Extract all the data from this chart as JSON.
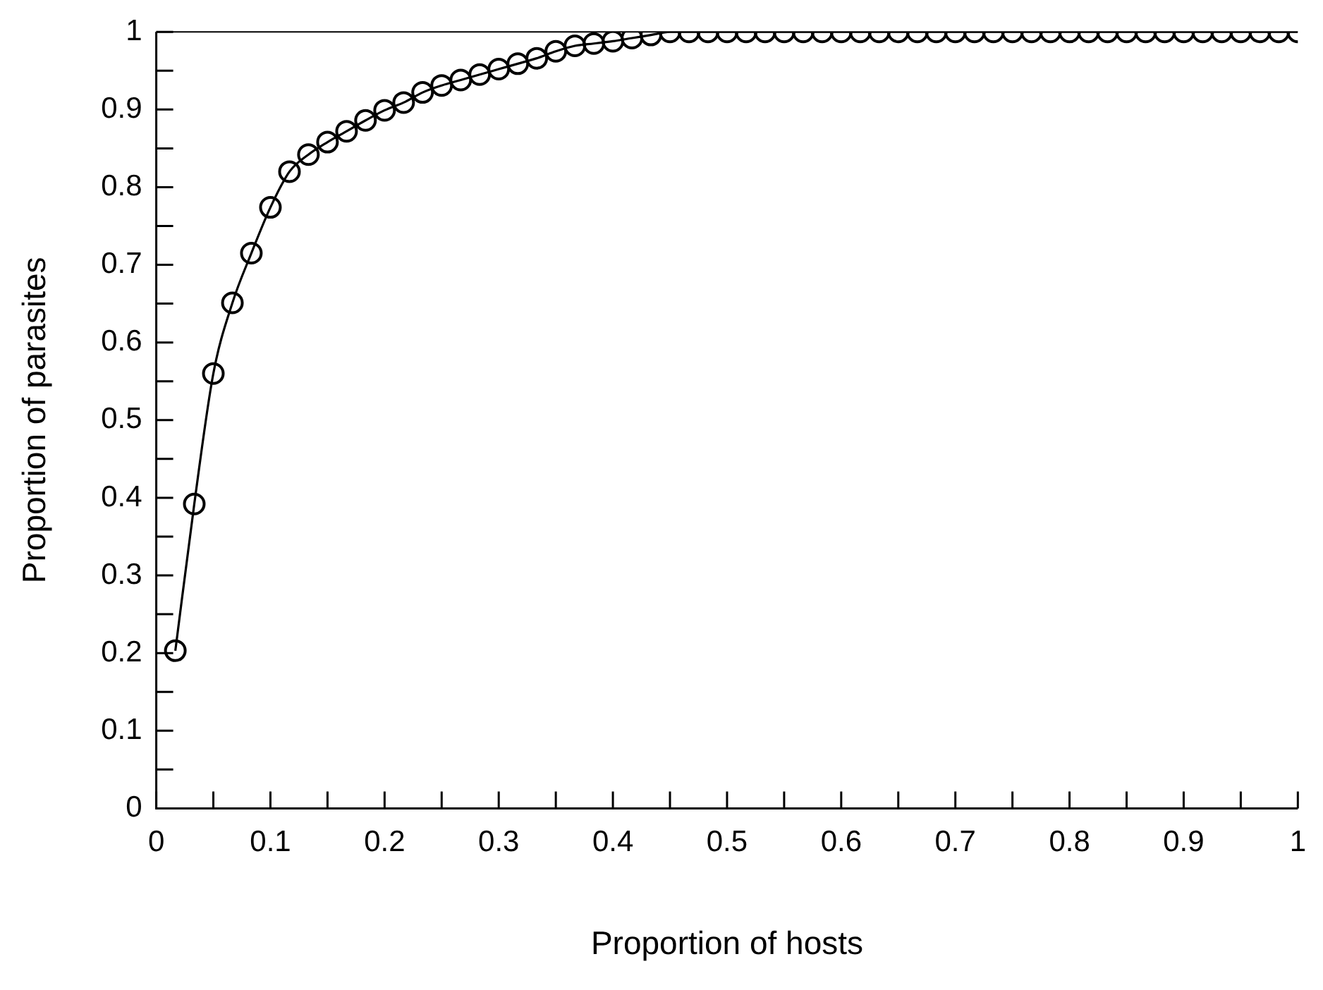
{
  "chart_data": {
    "type": "line",
    "xlabel": "Proportion of hosts",
    "ylabel": "Proportion of parasites",
    "marker": "circle",
    "line_style": "solid",
    "x": [
      0.0167,
      0.0333,
      0.05,
      0.0667,
      0.0833,
      0.1,
      0.1167,
      0.1333,
      0.15,
      0.1667,
      0.1833,
      0.2,
      0.2167,
      0.2333,
      0.25,
      0.2667,
      0.2833,
      0.3,
      0.3167,
      0.3333,
      0.35,
      0.3667,
      0.3833,
      0.4,
      0.4167,
      0.4333,
      0.45,
      0.4667,
      0.4833,
      0.5,
      0.5167,
      0.5333,
      0.55,
      0.5667,
      0.5833,
      0.6,
      0.6167,
      0.6333,
      0.65,
      0.6667,
      0.6833,
      0.7,
      0.7167,
      0.7333,
      0.75,
      0.7667,
      0.7833,
      0.8,
      0.8167,
      0.8333,
      0.85,
      0.8667,
      0.8833,
      0.9,
      0.9167,
      0.9333,
      0.95,
      0.9667,
      0.9833,
      1
    ],
    "series": [
      {
        "color": "#000000",
        "values": [
          0.203,
          0.392,
          0.56,
          0.651,
          0.715,
          0.774,
          0.82,
          0.842,
          0.858,
          0.872,
          0.886,
          0.899,
          0.909,
          0.922,
          0.931,
          0.938,
          0.945,
          0.952,
          0.959,
          0.966,
          0.975,
          0.982,
          0.985,
          0.988,
          0.992,
          0.996,
          1,
          1,
          1,
          1,
          1,
          1,
          1,
          1,
          1,
          1,
          1,
          1,
          1,
          1,
          1,
          1,
          1,
          1,
          1,
          1,
          1,
          1,
          1,
          1,
          1,
          1,
          1,
          1,
          1,
          1,
          1,
          1,
          1,
          1
        ]
      }
    ],
    "xlim": [
      0,
      1
    ],
    "ylim": [
      0,
      1
    ],
    "xticks": [
      0,
      {
        "value": 0.05,
        "label": null
      },
      0.1,
      {
        "value": 0.15,
        "label": null
      },
      0.2,
      {
        "value": 0.25,
        "label": null
      },
      0.3,
      {
        "value": 0.35,
        "label": null
      },
      0.4,
      {
        "value": 0.45,
        "label": null
      },
      0.5,
      {
        "value": 0.55,
        "label": null
      },
      0.6,
      {
        "value": 0.65,
        "label": null
      },
      0.7,
      {
        "value": 0.75,
        "label": null
      },
      0.8,
      {
        "value": 0.85,
        "label": null
      },
      0.9,
      {
        "value": 0.95,
        "label": null
      },
      1
    ],
    "yticks": [
      0,
      {
        "value": 0.05,
        "label": null
      },
      0.1,
      {
        "value": 0.15,
        "label": null
      },
      0.2,
      {
        "value": 0.25,
        "label": null
      },
      0.3,
      {
        "value": 0.35,
        "label": null
      },
      0.4,
      {
        "value": 0.45,
        "label": null
      },
      0.5,
      {
        "value": 0.55,
        "label": null
      },
      0.6,
      {
        "value": 0.65,
        "label": null
      },
      0.7,
      {
        "value": 0.75,
        "label": null
      },
      0.8,
      {
        "value": 0.85,
        "label": null
      },
      0.9,
      {
        "value": 0.95,
        "label": null
      },
      1
    ]
  }
}
